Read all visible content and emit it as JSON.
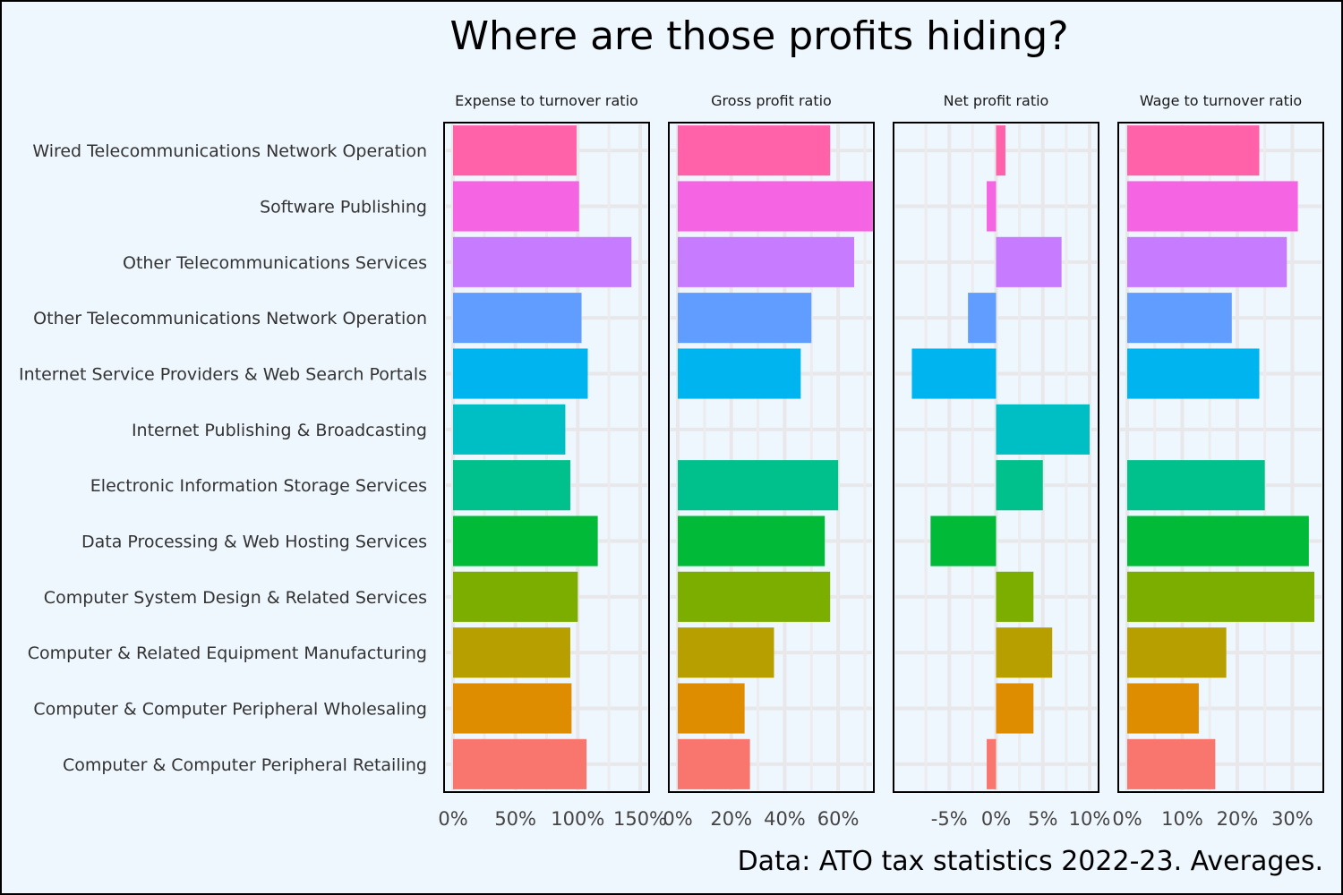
{
  "chart_data": {
    "type": "bar",
    "orientation": "horizontal",
    "title": "Where are those profits hiding?",
    "caption": "Data: ATO tax statistics 2022-23. Averages.",
    "categories": [
      "Wired Telecommunications Network Operation",
      "Software Publishing",
      "Other Telecommunications Services",
      "Other Telecommunications Network Operation",
      "Internet Service Providers & Web Search Portals",
      "Internet Publishing & Broadcasting",
      "Electronic Information Storage Services",
      "Data Processing & Web Hosting Services",
      "Computer System Design & Related Services",
      "Computer & Related Equipment Manufacturing",
      "Computer & Computer Peripheral Wholesaling",
      "Computer & Computer Peripheral Retailing"
    ],
    "colors": [
      "#ff62a9",
      "#f564e3",
      "#c77cff",
      "#619cff",
      "#00b4ef",
      "#00bfc4",
      "#00c08b",
      "#00ba38",
      "#7cae00",
      "#b79f00",
      "#de8c00",
      "#f8766d"
    ],
    "panels": [
      {
        "name": "Expense to turnover ratio",
        "unit": "%",
        "xlim": [
          0,
          150
        ],
        "ticks": [
          0,
          50,
          100,
          150
        ],
        "tick_labels": [
          "0%",
          "50%",
          "100%",
          "150%"
        ],
        "minor_ticks": [
          25,
          75,
          125
        ],
        "values": [
          99,
          101,
          143,
          103,
          108,
          90,
          94,
          116,
          100,
          94,
          95,
          107
        ]
      },
      {
        "name": "Gross profit ratio",
        "unit": "%",
        "xlim": [
          0,
          70
        ],
        "ticks": [
          0,
          20,
          40,
          60
        ],
        "tick_labels": [
          "0%",
          "20%",
          "40%",
          "60%"
        ],
        "minor_ticks": [
          10,
          30,
          50,
          70
        ],
        "values": [
          57,
          73,
          66,
          50,
          46,
          null,
          60,
          55,
          57,
          36,
          25,
          27
        ]
      },
      {
        "name": "Net profit ratio",
        "unit": "%",
        "xlim": [
          -10,
          10
        ],
        "ticks": [
          -5,
          0,
          5,
          10
        ],
        "tick_labels": [
          "-5%",
          "0%",
          "5%",
          "10%"
        ],
        "minor_ticks": [
          -7.5,
          -2.5,
          2.5,
          7.5
        ],
        "values": [
          1,
          -1,
          7,
          -3,
          -9,
          10,
          5,
          -7,
          4,
          6,
          4,
          -1
        ]
      },
      {
        "name": "Wage to turnover ratio",
        "unit": "%",
        "xlim": [
          0,
          34
        ],
        "ticks": [
          0,
          10,
          20,
          30
        ],
        "tick_labels": [
          "0%",
          "10%",
          "20%",
          "30%"
        ],
        "minor_ticks": [
          5,
          15,
          25
        ],
        "values": [
          24,
          31,
          29,
          19,
          24,
          null,
          25,
          33,
          34,
          18,
          13,
          16
        ]
      }
    ],
    "grid": true,
    "legend": "none"
  }
}
